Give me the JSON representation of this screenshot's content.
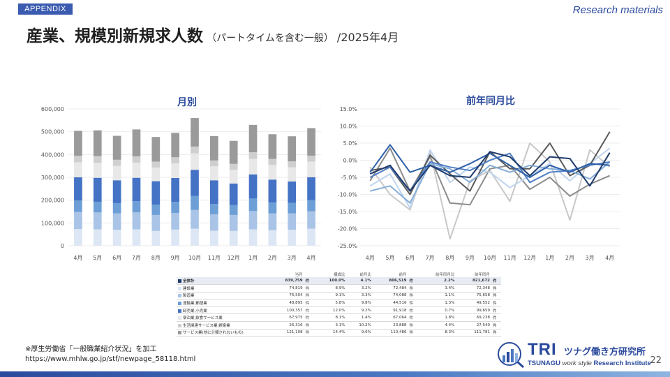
{
  "header": {
    "appendix": "APPENDIX",
    "research": "Research materials",
    "title_main": "産業、規模別新規求人数",
    "title_sub": "（パートタイムを含む一般）",
    "title_month": "/2025年4月"
  },
  "colors": {
    "series": [
      "#dce6f4",
      "#a9c4e6",
      "#6d9fd6",
      "#4472c4",
      "#e8e8e8",
      "#cfcfcf",
      "#9a9a9a",
      "#666666"
    ],
    "yoy": [
      "#1f3a6b",
      "#2e5fa8",
      "#4f7fc4",
      "#86aed8",
      "#bfd4ee",
      "#595959",
      "#8c8c8c",
      "#c8c8c8"
    ]
  },
  "chart_data": [
    {
      "type": "bar",
      "title": "月別",
      "categories": [
        "4月",
        "5月",
        "6月",
        "7月",
        "8月",
        "9月",
        "10月",
        "11月",
        "12月",
        "1月",
        "2月",
        "3月",
        "4月"
      ],
      "ylim": [
        0,
        600000
      ],
      "yticks": [
        "0",
        "100,000",
        "200,000",
        "300,000",
        "400,000",
        "500,000",
        "600,000"
      ],
      "stacked": true,
      "series": [
        {
          "values": [
            73000,
            72000,
            70000,
            72000,
            65000,
            71000,
            75000,
            66000,
            65000,
            72000,
            68000,
            70000,
            74819
          ]
        },
        {
          "values": [
            75000,
            74000,
            72000,
            75000,
            70000,
            73000,
            82000,
            72000,
            70000,
            80000,
            74000,
            72000,
            76504
          ]
        },
        {
          "values": [
            50000,
            47000,
            45000,
            48000,
            45000,
            48000,
            62000,
            45000,
            43000,
            55000,
            48000,
            46000,
            48895
          ]
        },
        {
          "values": [
            102000,
            105000,
            100000,
            103000,
            103000,
            105000,
            114000,
            104000,
            95000,
            106000,
            100000,
            94000,
            100357
          ]
        },
        {
          "values": [
            66000,
            66000,
            63000,
            66000,
            60000,
            64000,
            72000,
            61000,
            60000,
            68000,
            64000,
            62000,
            67975
          ]
        },
        {
          "values": [
            28000,
            29000,
            27000,
            28000,
            26000,
            27000,
            30000,
            26000,
            26000,
            29000,
            27000,
            26000,
            26316
          ]
        },
        {
          "values": [
            110000,
            113000,
            105000,
            118000,
            108000,
            107000,
            125000,
            107000,
            101000,
            120000,
            108000,
            110000,
            121108
          ]
        }
      ]
    },
    {
      "type": "line",
      "title": "前年同月比",
      "categories": [
        "4月",
        "5月",
        "6月",
        "7月",
        "8月",
        "9月",
        "10月",
        "11月",
        "12月",
        "1月",
        "2月",
        "3月",
        "4月"
      ],
      "ylim": [
        -25,
        15
      ],
      "yticks": [
        "-25.0%",
        "-20.0%",
        "-15.0%",
        "-10.0%",
        "-5.0%",
        "0.0%",
        "5.0%",
        "10.0%",
        "15.0%"
      ],
      "series": [
        {
          "values": [
            -4.0,
            -1.5,
            -9.0,
            -1.5,
            -4.5,
            -5.0,
            2.5,
            1.0,
            -4.5,
            1.0,
            0.5,
            -7.5,
            2.2
          ]
        },
        {
          "values": [
            -3.5,
            4.5,
            -3.5,
            -1.5,
            -3.5,
            -1.0,
            2.0,
            -1.5,
            -5.0,
            -1.5,
            -3.5,
            -1.0,
            -1.5
          ]
        },
        {
          "values": [
            -5.0,
            -2.0,
            -9.0,
            -0.5,
            -2.0,
            -3.0,
            0.0,
            2.0,
            -6.5,
            -3.5,
            -3.0,
            -1.5,
            -0.5
          ]
        },
        {
          "values": [
            -9.0,
            -7.5,
            -12.5,
            -1.0,
            -2.5,
            -6.5,
            -1.5,
            -3.5,
            -1.5,
            -2.5,
            -3.0,
            -5.5,
            -0.5
          ]
        },
        {
          "values": [
            -7.5,
            -4.0,
            -14.0,
            3.0,
            -6.5,
            -2.0,
            -3.5,
            -8.0,
            -4.5,
            -1.0,
            -6.0,
            -1.0,
            3.5
          ]
        },
        {
          "values": [
            -3.0,
            -2.0,
            -10.0,
            1.5,
            -4.0,
            -9.0,
            2.5,
            -2.5,
            -2.5,
            5.0,
            -4.5,
            -1.5,
            8.3
          ]
        },
        {
          "values": [
            -6.0,
            3.5,
            -9.0,
            1.0,
            -12.5,
            -13.0,
            -2.5,
            -1.5,
            -8.5,
            -5.0,
            -10.5,
            -7.0,
            -4.5
          ]
        },
        {
          "values": [
            -2.0,
            -10.0,
            -14.5,
            2.5,
            -23.0,
            -6.0,
            -3.0,
            -12.0,
            5.0,
            -0.5,
            -17.5,
            3.0,
            -2.0
          ]
        }
      ]
    }
  ],
  "table": {
    "headers": [
      "当月",
      "",
      "構成比",
      "前月比",
      "前月",
      "",
      "前年同月比",
      "前年同月",
      ""
    ],
    "rows": [
      {
        "label": "全体計",
        "v": [
          "839,759",
          "件",
          "100.0%",
          "4.1%",
          "806,519",
          "件",
          "2.2%",
          "821,672",
          "件"
        ]
      },
      {
        "label": "建設業",
        "v": [
          "74,819",
          "件",
          "8.9%",
          "3.2%",
          "72,484",
          "件",
          "3.4%",
          "72,348",
          "件"
        ]
      },
      {
        "label": "製造業",
        "v": [
          "76,504",
          "件",
          "9.1%",
          "3.3%",
          "74,088",
          "件",
          "1.1%",
          "75,658",
          "件"
        ]
      },
      {
        "label": "運輸業,郵便業",
        "v": [
          "48,895",
          "件",
          "5.8%",
          "9.8%",
          "44,516",
          "件",
          "1.3%",
          "49,552",
          "件"
        ]
      },
      {
        "label": "卸売業,小売業",
        "v": [
          "100,357",
          "件",
          "12.0%",
          "9.2%",
          "91,918",
          "件",
          "0.7%",
          "99,659",
          "件"
        ]
      },
      {
        "label": "宿泊業,飲食サービス業",
        "v": [
          "67,975",
          "件",
          "8.1%",
          "1.4%",
          "67,064",
          "件",
          "1.8%",
          "69,238",
          "件"
        ]
      },
      {
        "label": "生活関連サービス業,娯楽業",
        "v": [
          "26,316",
          "件",
          "3.1%",
          "10.2%",
          "23,888",
          "件",
          "4.4%",
          "27,540",
          "件"
        ]
      },
      {
        "label": "サービス業(他に分類されないもの)",
        "v": [
          "121,108",
          "件",
          "14.4%",
          "9.6%",
          "110,486",
          "件",
          "8.3%",
          "111,781",
          "件"
        ]
      }
    ]
  },
  "footer": {
    "note": "※厚生労働省「一般職業紹介状況」を加工",
    "url": "https://www.mhlw.go.jp/stf/newpage_58118.html",
    "logo_tri": "TRI",
    "logo_jp": "ツナグ働き方研究所",
    "logo_en_1": "TSUNAGU",
    "logo_en_2": "work style",
    "logo_en_3": "Research Institute",
    "page": "22"
  }
}
